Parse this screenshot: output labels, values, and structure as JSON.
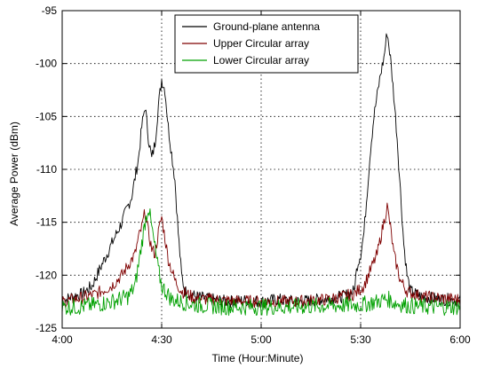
{
  "chart_data": {
    "type": "line",
    "title": "",
    "xlabel": "Time (Hour:Minute)",
    "ylabel": "Average Power (dBm)",
    "x_unit": "time of day (hh:mm)",
    "xlim": [
      "4:00",
      "6:00"
    ],
    "ylim": [
      -125,
      -95
    ],
    "xticks": [
      "4:00",
      "4:30",
      "5:00",
      "5:30",
      "6:00"
    ],
    "yticks": [
      -125,
      -120,
      -115,
      -110,
      -105,
      -100,
      -95
    ],
    "grid": true,
    "grid_style": "dotted",
    "legend_position": "top-right",
    "series": [
      {
        "name": "Ground-plane antenna",
        "color": "#000000",
        "points": [
          [
            "4:00",
            -122.5
          ],
          [
            "4:03",
            -122.0
          ],
          [
            "4:06",
            -121.8
          ],
          [
            "4:09",
            -121.0
          ],
          [
            "4:12",
            -119.0
          ],
          [
            "4:15",
            -117.0
          ],
          [
            "4:18",
            -115.0
          ],
          [
            "4:21",
            -112.5
          ],
          [
            "4:23",
            -109.0
          ],
          [
            "4:24",
            -106.0
          ],
          [
            "4:25",
            -104.0
          ],
          [
            "4:26",
            -107.0
          ],
          [
            "4:27",
            -109.0
          ],
          [
            "4:28",
            -107.5
          ],
          [
            "4:29",
            -104.0
          ],
          [
            "4:30",
            -101.5
          ],
          [
            "4:31",
            -102.5
          ],
          [
            "4:32",
            -106.0
          ],
          [
            "4:33",
            -108.5
          ],
          [
            "4:34",
            -111.0
          ],
          [
            "4:35",
            -116.0
          ],
          [
            "4:36",
            -120.0
          ],
          [
            "4:37",
            -121.5
          ],
          [
            "4:40",
            -122.0
          ],
          [
            "4:45",
            -122.3
          ],
          [
            "4:50",
            -122.5
          ],
          [
            "4:55",
            -122.4
          ],
          [
            "5:00",
            -122.5
          ],
          [
            "5:05",
            -122.3
          ],
          [
            "5:10",
            -122.5
          ],
          [
            "5:15",
            -122.4
          ],
          [
            "5:20",
            -122.2
          ],
          [
            "5:25",
            -122.0
          ],
          [
            "5:28",
            -121.5
          ],
          [
            "5:29",
            -119.0
          ],
          [
            "5:30",
            -118.0
          ],
          [
            "5:31",
            -116.0
          ],
          [
            "5:32",
            -112.0
          ],
          [
            "5:33",
            -108.0
          ],
          [
            "5:34",
            -105.0
          ],
          [
            "5:35",
            -103.0
          ],
          [
            "5:36",
            -101.0
          ],
          [
            "5:37",
            -99.5
          ],
          [
            "5:38",
            -97.0
          ],
          [
            "5:39",
            -99.5
          ],
          [
            "5:40",
            -103.0
          ],
          [
            "5:41",
            -107.0
          ],
          [
            "5:42",
            -112.0
          ],
          [
            "5:43",
            -117.0
          ],
          [
            "5:44",
            -120.0
          ],
          [
            "5:45",
            -121.5
          ],
          [
            "5:48",
            -122.0
          ],
          [
            "5:52",
            -122.2
          ],
          [
            "5:56",
            -122.3
          ],
          [
            "6:00",
            -122.4
          ]
        ]
      },
      {
        "name": "Upper Circular array",
        "color": "#7f0000",
        "points": [
          [
            "4:00",
            -122.5
          ],
          [
            "4:05",
            -122.2
          ],
          [
            "4:10",
            -121.8
          ],
          [
            "4:15",
            -121.0
          ],
          [
            "4:18",
            -120.0
          ],
          [
            "4:20",
            -119.0
          ],
          [
            "4:22",
            -118.0
          ],
          [
            "4:23",
            -116.5
          ],
          [
            "4:24",
            -115.5
          ],
          [
            "4:25",
            -114.0
          ],
          [
            "4:26",
            -116.0
          ],
          [
            "4:27",
            -117.5
          ],
          [
            "4:28",
            -118.0
          ],
          [
            "4:29",
            -116.0
          ],
          [
            "4:30",
            -114.5
          ],
          [
            "4:31",
            -116.5
          ],
          [
            "4:32",
            -118.5
          ],
          [
            "4:33",
            -119.5
          ],
          [
            "4:34",
            -120.5
          ],
          [
            "4:36",
            -121.5
          ],
          [
            "4:40",
            -122.2
          ],
          [
            "4:50",
            -122.4
          ],
          [
            "5:00",
            -122.5
          ],
          [
            "5:10",
            -122.5
          ],
          [
            "5:20",
            -122.3
          ],
          [
            "5:28",
            -121.8
          ],
          [
            "5:31",
            -121.0
          ],
          [
            "5:33",
            -119.5
          ],
          [
            "5:35",
            -118.0
          ],
          [
            "5:36",
            -116.5
          ],
          [
            "5:37",
            -115.0
          ],
          [
            "5:38",
            -113.5
          ],
          [
            "5:39",
            -115.5
          ],
          [
            "5:40",
            -118.0
          ],
          [
            "5:42",
            -120.5
          ],
          [
            "5:44",
            -121.5
          ],
          [
            "5:48",
            -122.0
          ],
          [
            "5:55",
            -122.2
          ],
          [
            "6:00",
            -122.3
          ]
        ]
      },
      {
        "name": "Lower Circular array",
        "color": "#00a000",
        "points": [
          [
            "4:00",
            -123.0
          ],
          [
            "4:05",
            -123.0
          ],
          [
            "4:10",
            -122.8
          ],
          [
            "4:15",
            -122.5
          ],
          [
            "4:20",
            -122.0
          ],
          [
            "4:22",
            -121.0
          ],
          [
            "4:23",
            -119.0
          ],
          [
            "4:24",
            -117.0
          ],
          [
            "4:25",
            -115.0
          ],
          [
            "4:26",
            -113.5
          ],
          [
            "4:27",
            -115.5
          ],
          [
            "4:28",
            -117.5
          ],
          [
            "4:29",
            -119.5
          ],
          [
            "4:30",
            -121.0
          ],
          [
            "4:33",
            -122.3
          ],
          [
            "4:40",
            -122.8
          ],
          [
            "4:50",
            -123.0
          ],
          [
            "5:00",
            -123.0
          ],
          [
            "5:10",
            -123.0
          ],
          [
            "5:20",
            -122.9
          ],
          [
            "5:30",
            -122.8
          ],
          [
            "5:35",
            -122.5
          ],
          [
            "5:38",
            -122.2
          ],
          [
            "5:40",
            -122.6
          ],
          [
            "5:45",
            -122.9
          ],
          [
            "5:50",
            -123.0
          ],
          [
            "6:00",
            -123.0
          ]
        ]
      }
    ]
  }
}
